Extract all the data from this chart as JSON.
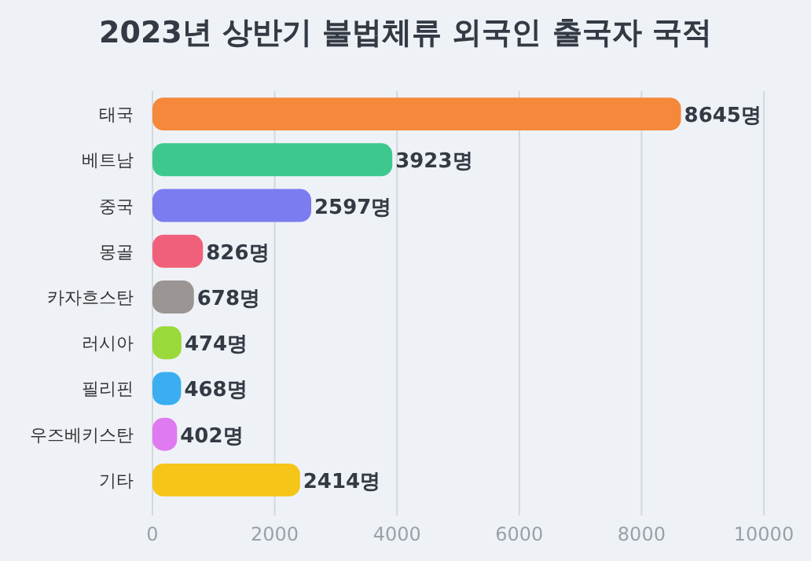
{
  "chart_data": {
    "type": "bar",
    "orientation": "horizontal",
    "title": "2023년 상반기 불법체류 외국인 출국자 국적",
    "categories": [
      "태국",
      "베트남",
      "중국",
      "몽골",
      "카자흐스탄",
      "러시아",
      "필리핀",
      "우즈베키스탄",
      "기타"
    ],
    "values": [
      8645,
      3923,
      2597,
      826,
      678,
      474,
      468,
      402,
      2414
    ],
    "colors": [
      "#f5883a",
      "#3dc98e",
      "#7b7cf0",
      "#f0607a",
      "#9a9593",
      "#9ad93a",
      "#3aaef0",
      "#e07af0",
      "#f5c518"
    ],
    "value_labels": [
      "8645명",
      "3923명",
      "2597명",
      "826명",
      "678명",
      "474명",
      "468명",
      "402명",
      "2414명"
    ],
    "xlim": [
      0,
      10000
    ],
    "xticks": [
      0,
      2000,
      4000,
      6000,
      8000,
      10000
    ],
    "grid": "x"
  }
}
